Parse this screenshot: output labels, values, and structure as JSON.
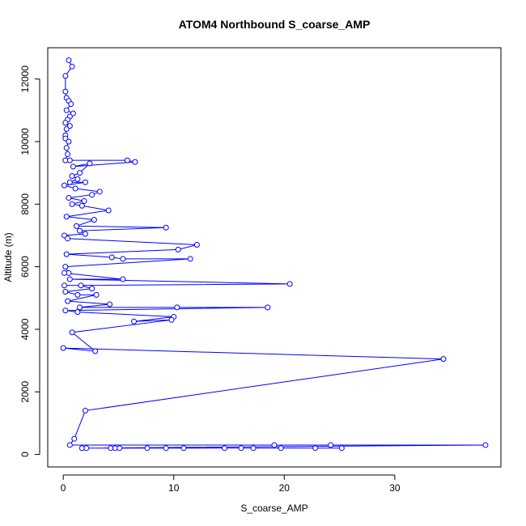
{
  "chart_data": {
    "type": "line",
    "title": "ATOM4 Northbound S_coarse_AMP",
    "xlabel": "S_coarse_AMP",
    "ylabel": "Altitude (m)",
    "xlim": [
      -1.4,
      39.6
    ],
    "ylim": [
      -400,
      13000
    ],
    "x_ticks": [
      0,
      10,
      20,
      30
    ],
    "y_ticks": [
      0,
      2000,
      4000,
      6000,
      8000,
      10000,
      12000
    ],
    "grid": false,
    "legend": "none",
    "series_color": "#0000ff",
    "marker": "open-circle",
    "series": [
      {
        "name": "",
        "points": [
          [
            0.5,
            12600
          ],
          [
            0.8,
            12400
          ],
          [
            0.2,
            12100
          ],
          [
            0.2,
            11600
          ],
          [
            0.3,
            11400
          ],
          [
            0.5,
            11300
          ],
          [
            0.7,
            11200
          ],
          [
            0.3,
            11000
          ],
          [
            0.9,
            10900
          ],
          [
            0.6,
            10800
          ],
          [
            0.4,
            10700
          ],
          [
            0.2,
            10600
          ],
          [
            0.6,
            10500
          ],
          [
            0.3,
            10400
          ],
          [
            0.2,
            10200
          ],
          [
            0.2,
            10100
          ],
          [
            0.5,
            10000
          ],
          [
            0.3,
            9800
          ],
          [
            0.4,
            9600
          ],
          [
            0.2,
            9400
          ],
          [
            0.6,
            9400
          ],
          [
            5.8,
            9400
          ],
          [
            6.5,
            9350
          ],
          [
            0.9,
            9200
          ],
          [
            2.4,
            9300
          ],
          [
            1.5,
            9000
          ],
          [
            0.8,
            8900
          ],
          [
            1.3,
            8800
          ],
          [
            0.6,
            8700
          ],
          [
            2.0,
            8700
          ],
          [
            0.1,
            8600
          ],
          [
            1.1,
            8500
          ],
          [
            3.3,
            8400
          ],
          [
            2.6,
            8300
          ],
          [
            0.5,
            8200
          ],
          [
            1.9,
            8100
          ],
          [
            0.8,
            8000
          ],
          [
            1.7,
            7950
          ],
          [
            4.1,
            7800
          ],
          [
            0.3,
            7600
          ],
          [
            2.8,
            7500
          ],
          [
            1.2,
            7300
          ],
          [
            9.3,
            7250
          ],
          [
            1.5,
            7150
          ],
          [
            2.0,
            7050
          ],
          [
            0.1,
            7000
          ],
          [
            0.4,
            6900
          ],
          [
            12.1,
            6700
          ],
          [
            10.4,
            6550
          ],
          [
            0.3,
            6400
          ],
          [
            4.4,
            6300
          ],
          [
            5.4,
            6250
          ],
          [
            11.5,
            6250
          ],
          [
            0.2,
            6000
          ],
          [
            0.5,
            5800
          ],
          [
            0.1,
            5800
          ],
          [
            5.4,
            5600
          ],
          [
            0.6,
            5600
          ],
          [
            20.5,
            5450
          ],
          [
            0.1,
            5400
          ],
          [
            1.6,
            5400
          ],
          [
            2.6,
            5300
          ],
          [
            0.2,
            5200
          ],
          [
            1.3,
            5100
          ],
          [
            3.0,
            5100
          ],
          [
            0.4,
            4900
          ],
          [
            4.2,
            4800
          ],
          [
            1.5,
            4700
          ],
          [
            10.3,
            4700
          ],
          [
            18.5,
            4700
          ],
          [
            0.2,
            4600
          ],
          [
            1.3,
            4550
          ],
          [
            10.0,
            4400
          ],
          [
            6.4,
            4250
          ],
          [
            9.8,
            4300
          ],
          [
            0.8,
            3900
          ],
          [
            2.9,
            3300
          ],
          [
            0.0,
            3400
          ],
          [
            34.4,
            3050
          ],
          [
            2.0,
            1400
          ],
          [
            1.0,
            500
          ],
          [
            0.6,
            300
          ],
          [
            19.1,
            300
          ],
          [
            24.2,
            300
          ],
          [
            38.2,
            300
          ],
          [
            1.7,
            200
          ],
          [
            2.1,
            200
          ],
          [
            4.3,
            200
          ],
          [
            4.7,
            200
          ],
          [
            5.1,
            200
          ],
          [
            7.6,
            200
          ],
          [
            9.3,
            200
          ],
          [
            10.9,
            200
          ],
          [
            14.6,
            200
          ],
          [
            16.1,
            200
          ],
          [
            17.2,
            200
          ],
          [
            19.7,
            200
          ],
          [
            22.8,
            200
          ],
          [
            25.2,
            200
          ]
        ]
      }
    ]
  }
}
